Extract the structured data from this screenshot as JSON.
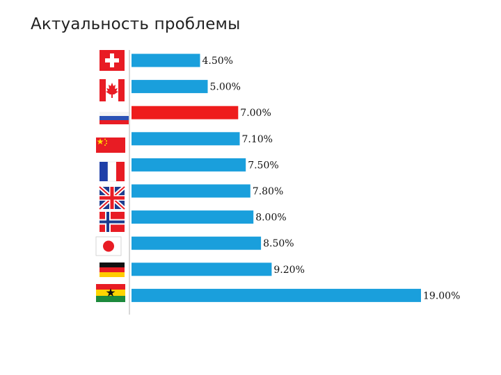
{
  "title": "Актуальность проблемы",
  "chart_data": {
    "type": "bar",
    "orientation": "horizontal",
    "title": "Актуальность проблемы",
    "categories": [
      "Switzerland",
      "Canada",
      "Russia",
      "China",
      "France",
      "United Kingdom",
      "Norway",
      "Japan",
      "Germany",
      "Ghana"
    ],
    "values": [
      4.5,
      5.0,
      7.0,
      7.1,
      7.5,
      7.8,
      8.0,
      8.5,
      9.2,
      19.0
    ],
    "labels": [
      "4.50%",
      "5.00%",
      "7.00%",
      "7.10%",
      "7.50%",
      "7.80%",
      "8.00%",
      "8.50%",
      "9.20%",
      "19.00%"
    ],
    "category_icons": [
      "swiss-flag-icon",
      "canada-flag-icon",
      "russia-flag-icon",
      "china-flag-icon",
      "france-flag-icon",
      "uk-flag-icon",
      "norway-flag-icon",
      "japan-flag-icon",
      "germany-flag-icon",
      "ghana-flag-icon"
    ],
    "highlight_index": 2,
    "xlim": [
      0,
      19
    ],
    "grid": false,
    "legend": "none",
    "colors": {
      "bar": "#1a9fdc",
      "highlight": "#ee1c1c"
    }
  }
}
